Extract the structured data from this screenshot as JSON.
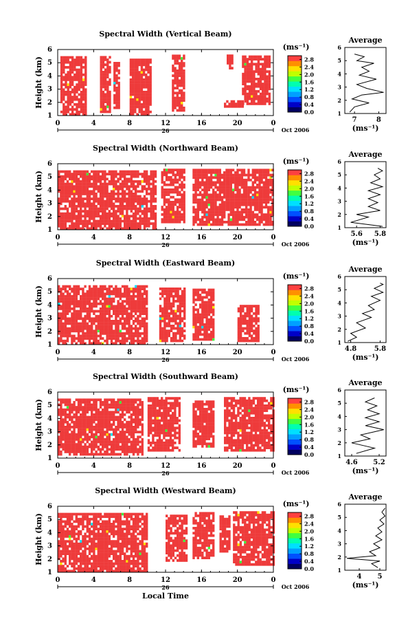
{
  "chart_data": [
    {
      "type": "heatmap",
      "title": "Spectral Width (Vertical Beam)",
      "ylabel": "Height (km)",
      "ylim": [
        1,
        6
      ],
      "xlim": [
        0,
        24
      ],
      "x_ticks": [
        "0",
        "4",
        "8",
        "12",
        "16",
        "20",
        "0"
      ],
      "y_ticks": [
        "1",
        "2",
        "3",
        "4",
        "5",
        "6"
      ],
      "day_label": "26",
      "month_label": "Oct 2006",
      "colorbar": {
        "unit": "(ms⁻¹)",
        "ticks": [
          "0.0",
          "0.4",
          "0.8",
          "1.2",
          "1.6",
          "2.0",
          "2.4",
          "2.8"
        ],
        "range": [
          0,
          3.0
        ],
        "colors": [
          "#000060",
          "#0000c8",
          "#0050ff",
          "#00a0ff",
          "#00e0ff",
          "#00ffb0",
          "#40ff40",
          "#c0ff00",
          "#ffe000",
          "#ff9000",
          "#ff4040"
        ]
      },
      "dominant_value": 3.0,
      "dominant_color": "#ee3b3b",
      "data_blocks": [
        {
          "x": [
            0.3,
            3.2
          ],
          "y": [
            1.0,
            5.5
          ]
        },
        {
          "x": [
            4.7,
            5.8
          ],
          "y": [
            1.2,
            5.4
          ]
        },
        {
          "x": [
            6.2,
            6.8
          ],
          "y": [
            1.5,
            5.0
          ]
        },
        {
          "x": [
            8.0,
            10.3
          ],
          "y": [
            1.0,
            5.2
          ]
        },
        {
          "x": [
            12.7,
            14.0
          ],
          "y": [
            1.3,
            5.5
          ]
        },
        {
          "x": [
            18.5,
            20.5
          ],
          "y": [
            1.6,
            2.0
          ]
        },
        {
          "x": [
            18.8,
            19.5
          ],
          "y": [
            4.5,
            5.5
          ]
        },
        {
          "x": [
            20.5,
            23.5
          ],
          "y": [
            1.8,
            5.5
          ]
        }
      ],
      "average_profile": {
        "title": "Average",
        "xlabel": "(ms⁻¹)",
        "x_ticks": [
          7,
          8
        ],
        "xlim": [
          6.6,
          8.3
        ],
        "ylim": [
          1,
          6
        ],
        "y_ticks": [
          "1",
          "2",
          "3",
          "4",
          "5",
          "6"
        ],
        "points": [
          [
            6.8,
            1.1
          ],
          [
            7.0,
            1.5
          ],
          [
            7.6,
            1.8
          ],
          [
            6.9,
            2.1
          ],
          [
            7.3,
            2.4
          ],
          [
            8.2,
            2.6
          ],
          [
            7.5,
            2.9
          ],
          [
            7.1,
            3.2
          ],
          [
            7.9,
            3.6
          ],
          [
            7.2,
            3.9
          ],
          [
            7.6,
            4.2
          ],
          [
            7.3,
            4.5
          ],
          [
            7.8,
            4.8
          ],
          [
            7.1,
            5.0
          ],
          [
            7.4,
            5.3
          ],
          [
            7.0,
            5.5
          ]
        ]
      }
    },
    {
      "type": "heatmap",
      "title": "Spectral Width (Northward Beam)",
      "ylabel": "Height (km)",
      "ylim": [
        1,
        6
      ],
      "xlim": [
        0,
        24
      ],
      "x_ticks": [
        "0",
        "4",
        "8",
        "12",
        "16",
        "20",
        "0"
      ],
      "y_ticks": [
        "1",
        "2",
        "3",
        "4",
        "5",
        "6"
      ],
      "day_label": "26",
      "month_label": "Oct 2006",
      "colorbar": {
        "unit": "(ms⁻¹)",
        "ticks": [
          "0.0",
          "0.4",
          "0.8",
          "1.2",
          "1.6",
          "2.0",
          "2.4",
          "2.8"
        ],
        "range": [
          0,
          3.0
        ],
        "colors": [
          "#000060",
          "#0000c8",
          "#0050ff",
          "#00a0ff",
          "#00e0ff",
          "#00ffb0",
          "#40ff40",
          "#c0ff00",
          "#ffe000",
          "#ff9000",
          "#ff4040"
        ]
      },
      "dominant_value": 3.0,
      "dominant_color": "#ee3b3b",
      "data_blocks": [
        {
          "x": [
            0.0,
            11.0
          ],
          "y": [
            1.0,
            5.5
          ]
        },
        {
          "x": [
            11.5,
            14.0
          ],
          "y": [
            1.5,
            5.5
          ]
        },
        {
          "x": [
            15.0,
            24.0
          ],
          "y": [
            1.3,
            5.5
          ]
        }
      ],
      "average_profile": {
        "title": "Average",
        "xlabel": "(ms⁻¹)",
        "x_ticks": [
          5.6,
          5.8
        ],
        "xlim": [
          5.5,
          5.85
        ],
        "ylim": [
          1,
          6
        ],
        "y_ticks": [
          "1",
          "2",
          "3",
          "4",
          "5",
          "6"
        ],
        "points": [
          [
            5.82,
            1.1
          ],
          [
            5.55,
            1.4
          ],
          [
            5.7,
            1.8
          ],
          [
            5.6,
            2.0
          ],
          [
            5.8,
            2.3
          ],
          [
            5.7,
            2.6
          ],
          [
            5.78,
            2.9
          ],
          [
            5.7,
            3.2
          ],
          [
            5.8,
            3.5
          ],
          [
            5.7,
            3.8
          ],
          [
            5.82,
            4.1
          ],
          [
            5.72,
            4.4
          ],
          [
            5.8,
            4.7
          ],
          [
            5.75,
            5.0
          ],
          [
            5.82,
            5.3
          ],
          [
            5.78,
            5.5
          ]
        ]
      }
    },
    {
      "type": "heatmap",
      "title": "Spectral Width (Eastward Beam)",
      "ylabel": "Height (km)",
      "ylim": [
        1,
        6
      ],
      "xlim": [
        0,
        24
      ],
      "x_ticks": [
        "0",
        "4",
        "8",
        "12",
        "16",
        "20",
        "0"
      ],
      "y_ticks": [
        "1",
        "2",
        "3",
        "4",
        "5",
        "6"
      ],
      "day_label": "26",
      "month_label": "Oct 2006",
      "colorbar": {
        "unit": "(ms⁻¹)",
        "ticks": [
          "0.0",
          "0.4",
          "0.8",
          "1.2",
          "1.6",
          "2.0",
          "2.4",
          "2.8"
        ],
        "range": [
          0,
          3.0
        ],
        "colors": [
          "#000060",
          "#0000c8",
          "#0050ff",
          "#00a0ff",
          "#00e0ff",
          "#00ffb0",
          "#40ff40",
          "#c0ff00",
          "#ffe000",
          "#ff9000",
          "#ff4040"
        ]
      },
      "dominant_value": 3.0,
      "dominant_color": "#ee3b3b",
      "data_blocks": [
        {
          "x": [
            0.0,
            10.0
          ],
          "y": [
            1.0,
            5.5
          ]
        },
        {
          "x": [
            11.3,
            14.0
          ],
          "y": [
            1.2,
            5.3
          ]
        },
        {
          "x": [
            15.0,
            17.3
          ],
          "y": [
            1.3,
            5.2
          ]
        },
        {
          "x": [
            20.0,
            22.3
          ],
          "y": [
            1.2,
            4.0
          ]
        }
      ],
      "average_profile": {
        "title": "Average",
        "xlabel": "(ms⁻¹)",
        "x_ticks": [
          4.8,
          5.8
        ],
        "xlim": [
          4.6,
          6.0
        ],
        "ylim": [
          1,
          6
        ],
        "y_ticks": [
          "1",
          "2",
          "3",
          "4",
          "5",
          "6"
        ],
        "points": [
          [
            4.7,
            1.1
          ],
          [
            5.0,
            1.4
          ],
          [
            4.8,
            1.7
          ],
          [
            5.3,
            2.1
          ],
          [
            5.0,
            2.5
          ],
          [
            5.5,
            2.9
          ],
          [
            5.2,
            3.2
          ],
          [
            5.6,
            3.5
          ],
          [
            5.4,
            3.8
          ],
          [
            5.8,
            4.2
          ],
          [
            5.5,
            4.5
          ],
          [
            5.9,
            4.8
          ],
          [
            5.6,
            5.1
          ],
          [
            5.9,
            5.4
          ],
          [
            5.8,
            5.5
          ]
        ]
      }
    },
    {
      "type": "heatmap",
      "title": "Spectral Width (Southward Beam)",
      "ylabel": "Height (km)",
      "ylim": [
        1,
        6
      ],
      "xlim": [
        0,
        24
      ],
      "x_ticks": [
        "0",
        "4",
        "8",
        "12",
        "16",
        "20",
        "0"
      ],
      "y_ticks": [
        "1",
        "2",
        "3",
        "4",
        "5",
        "6"
      ],
      "day_label": "26",
      "month_label": "Oct 2006",
      "colorbar": {
        "unit": "(ms⁻¹)",
        "ticks": [
          "0.0",
          "0.4",
          "0.8",
          "1.2",
          "1.6",
          "2.0",
          "2.4",
          "2.8"
        ],
        "range": [
          0,
          3.0
        ],
        "colors": [
          "#000060",
          "#0000c8",
          "#0050ff",
          "#00a0ff",
          "#00e0ff",
          "#00ffb0",
          "#40ff40",
          "#c0ff00",
          "#ffe000",
          "#ff9000",
          "#ff4040"
        ]
      },
      "dominant_value": 3.0,
      "dominant_color": "#ee3b3b",
      "data_blocks": [
        {
          "x": [
            0.0,
            9.5
          ],
          "y": [
            1.2,
            5.4
          ]
        },
        {
          "x": [
            10.0,
            13.5
          ],
          "y": [
            1.5,
            5.5
          ]
        },
        {
          "x": [
            15.0,
            17.3
          ],
          "y": [
            1.8,
            5.2
          ]
        },
        {
          "x": [
            18.5,
            24.0
          ],
          "y": [
            1.5,
            5.5
          ]
        }
      ],
      "average_profile": {
        "title": "Average",
        "xlabel": "(ms⁻¹)",
        "x_ticks": [
          4.6,
          5.2
        ],
        "xlim": [
          4.45,
          5.35
        ],
        "ylim": [
          1,
          6
        ],
        "y_ticks": [
          "1",
          "2",
          "3",
          "4",
          "5",
          "6"
        ],
        "points": [
          [
            4.7,
            1.2
          ],
          [
            5.1,
            1.6
          ],
          [
            4.6,
            2.0
          ],
          [
            5.0,
            2.3
          ],
          [
            4.8,
            2.6
          ],
          [
            5.3,
            3.0
          ],
          [
            4.9,
            3.3
          ],
          [
            5.2,
            3.6
          ],
          [
            4.9,
            3.9
          ],
          [
            5.2,
            4.2
          ],
          [
            4.95,
            4.5
          ],
          [
            5.15,
            4.8
          ],
          [
            4.9,
            5.1
          ],
          [
            5.1,
            5.4
          ]
        ]
      }
    },
    {
      "type": "heatmap",
      "title": "Spectral Width (Westward Beam)",
      "ylabel": "Height (km)",
      "xlabel": "Local Time",
      "ylim": [
        1,
        6
      ],
      "xlim": [
        0,
        24
      ],
      "x_ticks": [
        "0",
        "4",
        "8",
        "12",
        "16",
        "20",
        "0"
      ],
      "y_ticks": [
        "1",
        "2",
        "3",
        "4",
        "5",
        "6"
      ],
      "day_label": "26",
      "month_label": "Oct 2006",
      "colorbar": {
        "unit": "(ms⁻¹)",
        "ticks": [
          "0.0",
          "0.4",
          "0.8",
          "1.2",
          "1.6",
          "2.0",
          "2.4",
          "2.8"
        ],
        "range": [
          0,
          3.0
        ],
        "colors": [
          "#000060",
          "#0000c8",
          "#0050ff",
          "#00a0ff",
          "#00e0ff",
          "#00ffb0",
          "#40ff40",
          "#c0ff00",
          "#ffe000",
          "#ff9000",
          "#ff4040"
        ]
      },
      "dominant_value": 3.0,
      "dominant_color": "#ee3b3b",
      "data_blocks": [
        {
          "x": [
            0.0,
            10.0
          ],
          "y": [
            1.0,
            5.5
          ]
        },
        {
          "x": [
            12.0,
            14.3
          ],
          "y": [
            1.8,
            5.3
          ]
        },
        {
          "x": [
            15.0,
            17.3
          ],
          "y": [
            2.0,
            5.4
          ]
        },
        {
          "x": [
            18.0,
            19.0
          ],
          "y": [
            2.5,
            5.3
          ]
        },
        {
          "x": [
            19.5,
            24.0
          ],
          "y": [
            1.5,
            5.5
          ]
        }
      ],
      "average_profile": {
        "title": "Average",
        "xlabel": "(ms⁻¹)",
        "x_ticks": [
          4,
          5
        ],
        "xlim": [
          3.3,
          5.3
        ],
        "ylim": [
          1,
          6
        ],
        "y_ticks": [
          "1",
          "2",
          "3",
          "4",
          "5",
          "6"
        ],
        "points": [
          [
            4.9,
            1.2
          ],
          [
            4.6,
            1.5
          ],
          [
            5.0,
            1.7
          ],
          [
            3.4,
            1.9
          ],
          [
            4.8,
            2.1
          ],
          [
            4.5,
            2.4
          ],
          [
            5.0,
            2.7
          ],
          [
            4.7,
            3.0
          ],
          [
            5.1,
            3.3
          ],
          [
            4.8,
            3.6
          ],
          [
            5.1,
            3.9
          ],
          [
            4.9,
            4.2
          ],
          [
            5.2,
            4.5
          ],
          [
            5.0,
            4.8
          ],
          [
            5.25,
            5.1
          ],
          [
            5.1,
            5.4
          ],
          [
            5.25,
            5.7
          ]
        ]
      }
    }
  ]
}
